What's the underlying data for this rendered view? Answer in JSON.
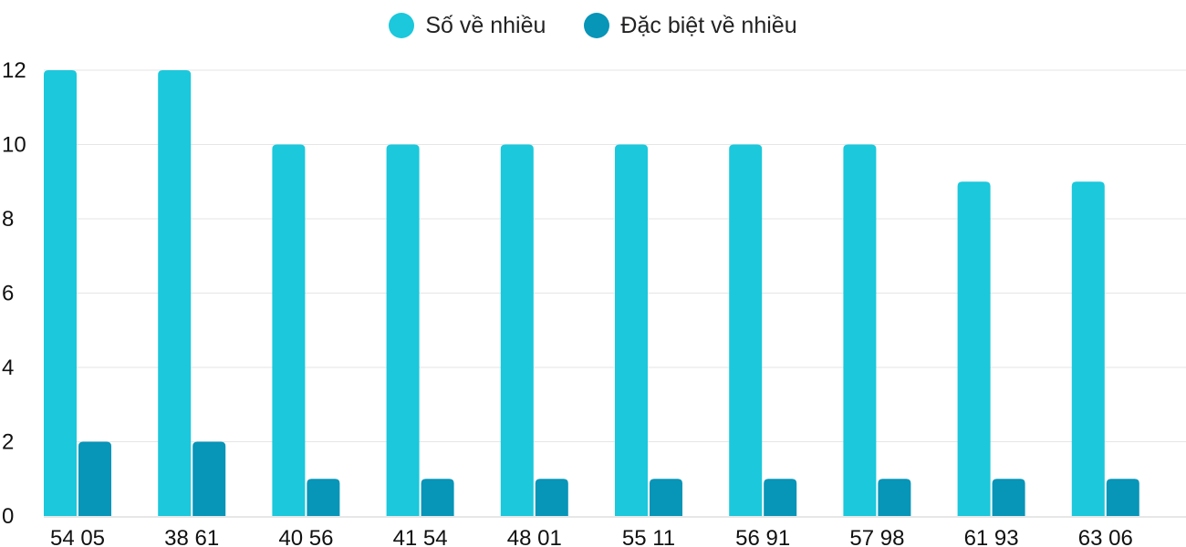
{
  "chart_data": {
    "type": "bar",
    "categories": [
      "54 05",
      "38 61",
      "40 56",
      "41 54",
      "48 01",
      "55 11",
      "56 91",
      "57 98",
      "61 93",
      "63 06"
    ],
    "series": [
      {
        "name": "Số về nhiều",
        "color": "#1bc8dc",
        "values": [
          12,
          12,
          10,
          10,
          10,
          10,
          10,
          10,
          9,
          9
        ]
      },
      {
        "name": "Đặc biệt về nhiều",
        "color": "#0795b8",
        "values": [
          2,
          2,
          1,
          1,
          1,
          1,
          1,
          1,
          1,
          1
        ]
      }
    ],
    "y_ticks": [
      0,
      2,
      4,
      6,
      8,
      10,
      12
    ],
    "ylim": [
      0,
      12
    ],
    "grid": true,
    "legend_position": "top-center",
    "title": "",
    "xlabel": "",
    "ylabel": ""
  }
}
